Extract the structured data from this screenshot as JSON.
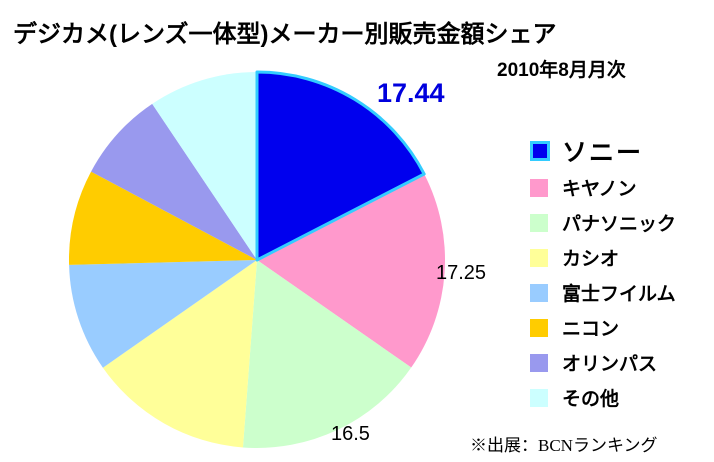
{
  "title": "デジカメ(レンズ一体型)メーカー別販売金額シェア",
  "subtitle": "2010年8月月次",
  "source_note": "※出展：BCNランキング",
  "chart_data": {
    "type": "pie",
    "title": "デジカメ(レンズ一体型)メーカー別販売金額シェア",
    "subtitle": "2010年8月月次",
    "unit": "percent-share",
    "start_angle_deg": 0,
    "direction": "clockwise",
    "legend_position": "right",
    "highlight_color": "#33CCFF",
    "series": [
      {
        "label": "ソニー",
        "value": 17.44,
        "color": "#0000EE",
        "highlighted": true
      },
      {
        "label": "キヤノン",
        "value": 17.25,
        "color": "#FF99CC",
        "highlighted": false
      },
      {
        "label": "パナソニック",
        "value": 16.5,
        "color": "#CCFFCC",
        "highlighted": false
      },
      {
        "label": "カシオ",
        "value": 14.1,
        "color": "#FFFF99",
        "highlighted": false
      },
      {
        "label": "富士フイルム",
        "value": 9.3,
        "color": "#99CCFF",
        "highlighted": false
      },
      {
        "label": "ニコン",
        "value": 8.2,
        "color": "#FFCC00",
        "highlighted": false
      },
      {
        "label": "オリンパス",
        "value": 7.8,
        "color": "#9999EE",
        "highlighted": false
      },
      {
        "label": "その他",
        "value": 9.41,
        "color": "#CCFFFF",
        "highlighted": false
      }
    ],
    "data_labels": [
      {
        "text": "17.44",
        "series": "ソニー",
        "color": "#0000DD",
        "emphasis": true
      },
      {
        "text": "17.25",
        "series": "キヤノン",
        "color": "#000000",
        "emphasis": false
      },
      {
        "text": "16.5",
        "series": "パナソニック",
        "color": "#000000",
        "emphasis": false
      }
    ]
  }
}
